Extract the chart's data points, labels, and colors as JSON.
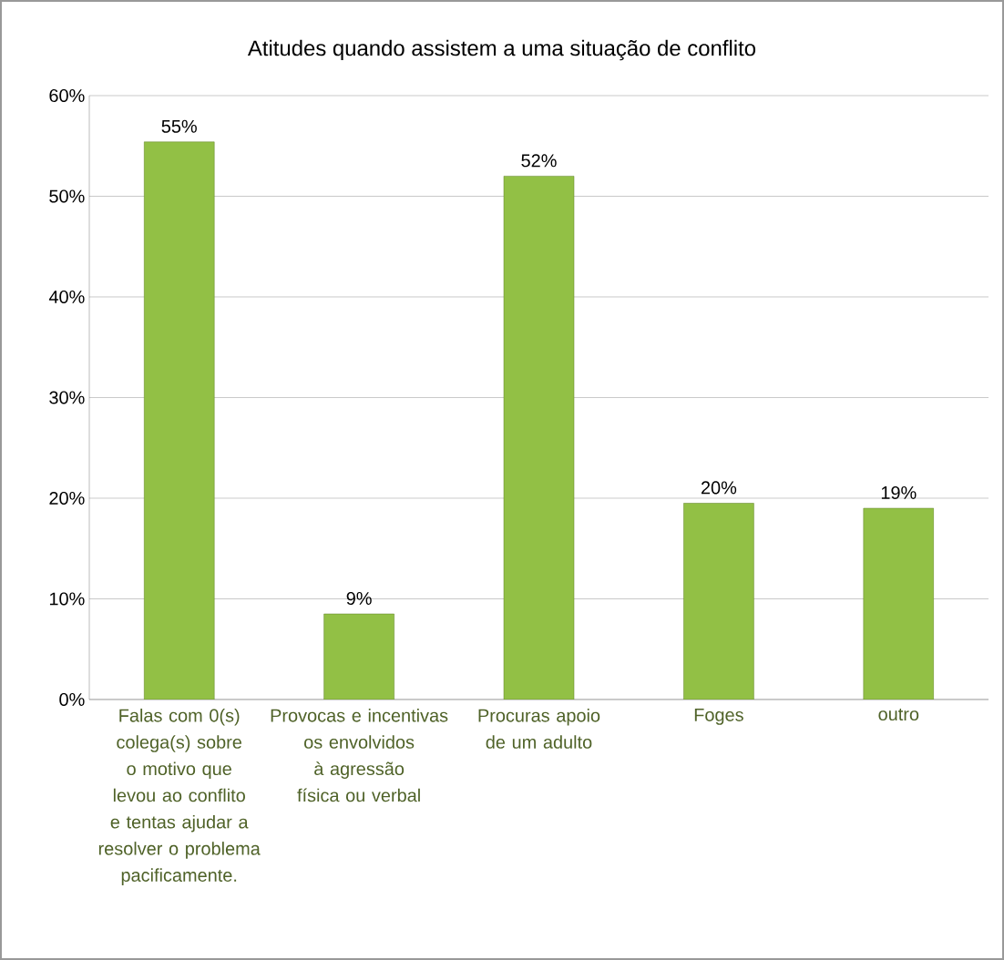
{
  "chart_data": {
    "type": "bar",
    "title": "Atitudes quando assistem a uma situação de conflito",
    "categories": [
      "Falas com 0(s) colega(s) sobre o motivo que levou ao conflito e tentas ajudar a resolver o problema pacificamente.",
      "Provocas e incentivas os envolvidos à agressão física ou verbal",
      "Procuras apoio de um adulto",
      "Foges",
      "outro"
    ],
    "values": [
      55.4,
      8.5,
      52,
      19.5,
      19
    ],
    "value_labels": [
      "55%",
      "9%",
      "52%",
      "20%",
      "19%"
    ],
    "color": "#92c045",
    "ylim": [
      0,
      60
    ],
    "yticks": [
      {
        "value": 0,
        "label": "0%"
      },
      {
        "value": 10,
        "label": "10%"
      },
      {
        "value": 20,
        "label": "20%"
      },
      {
        "value": 30,
        "label": "30%"
      },
      {
        "value": 40,
        "label": "40%"
      },
      {
        "value": 50,
        "label": "50%"
      },
      {
        "value": 60,
        "label": "60%"
      }
    ],
    "grid": "y"
  }
}
